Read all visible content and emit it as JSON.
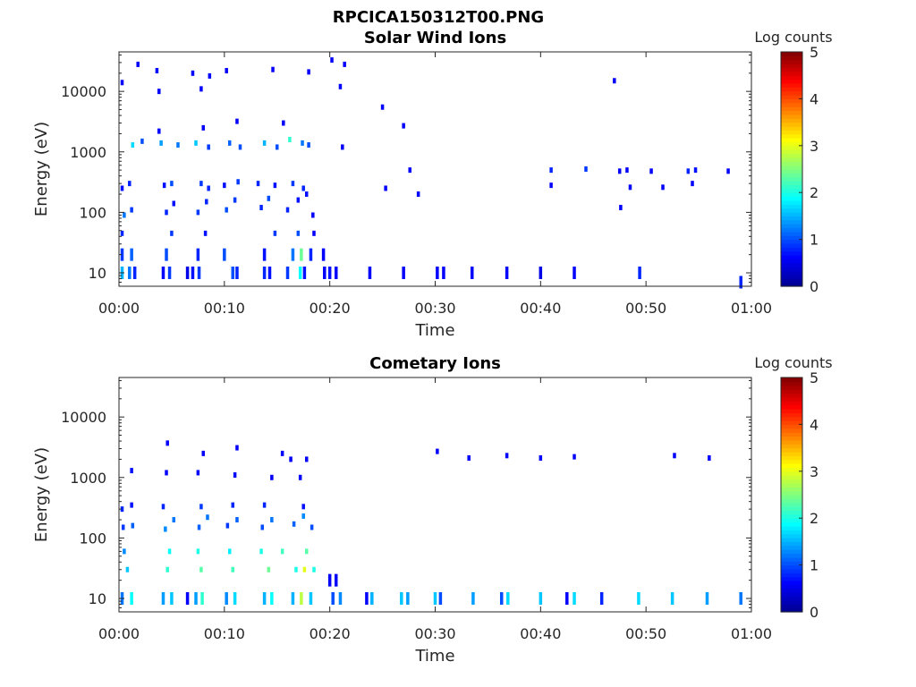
{
  "figure": {
    "title": "RPCICA150312T00.PNG"
  },
  "colorscale": [
    "#00008f",
    "#0000ff",
    "#0080ff",
    "#00ffff",
    "#80ff80",
    "#ffff00",
    "#ff8000",
    "#ff0000",
    "#800000"
  ],
  "chart_data": [
    {
      "type": "heatmap",
      "title": "Solar Wind Ions",
      "xlabel": "Time",
      "ylabel": "Energy (eV)",
      "x_ticks": [
        "00:00",
        "00:10",
        "00:20",
        "00:30",
        "00:40",
        "00:50",
        "01:00"
      ],
      "x_range_minutes": [
        0,
        60
      ],
      "y_scale": "log",
      "y_ticks": [
        "10",
        "100",
        "1000",
        "10000"
      ],
      "y_range": [
        6,
        45000
      ],
      "colorbar": {
        "label": "Log counts",
        "range": [
          0,
          5
        ],
        "ticks": [
          "0",
          "1",
          "2",
          "3",
          "4",
          "5"
        ]
      },
      "cells": [
        [
          0.3,
          10,
          1.5
        ],
        [
          1.0,
          10,
          1.2
        ],
        [
          1.5,
          10,
          0.8
        ],
        [
          4.2,
          10,
          0.6
        ],
        [
          4.8,
          10,
          0.9
        ],
        [
          6.5,
          10,
          0.5
        ],
        [
          7.0,
          10,
          0.7
        ],
        [
          7.6,
          10,
          0.9
        ],
        [
          10.8,
          10,
          1.0
        ],
        [
          11.2,
          10,
          0.8
        ],
        [
          13.8,
          10,
          0.8
        ],
        [
          14.3,
          10,
          0.7
        ],
        [
          16.0,
          10,
          0.9
        ],
        [
          17.2,
          10,
          1.9
        ],
        [
          17.6,
          10,
          0.7
        ],
        [
          19.5,
          10,
          0.6
        ],
        [
          20.0,
          10,
          0.7
        ],
        [
          20.6,
          10,
          0.6
        ],
        [
          23.8,
          10,
          0.6
        ],
        [
          27.0,
          10,
          0.6
        ],
        [
          30.2,
          10,
          0.6
        ],
        [
          30.8,
          10,
          0.6
        ],
        [
          33.5,
          10,
          0.6
        ],
        [
          36.8,
          10,
          0.6
        ],
        [
          40.0,
          10,
          0.5
        ],
        [
          43.2,
          10,
          0.6
        ],
        [
          49.4,
          10,
          0.8
        ],
        [
          59.0,
          7,
          0.8
        ],
        [
          0.3,
          20,
          0.9
        ],
        [
          1.2,
          20,
          1.1
        ],
        [
          4.5,
          20,
          1.0
        ],
        [
          7.5,
          20,
          0.8
        ],
        [
          10.0,
          20,
          1.0
        ],
        [
          13.8,
          20,
          0.7
        ],
        [
          16.5,
          20,
          1.2
        ],
        [
          17.3,
          20,
          2.4
        ],
        [
          18.2,
          20,
          0.8
        ],
        [
          19.4,
          20,
          0.6
        ],
        [
          0.3,
          45,
          0.8
        ],
        [
          5.0,
          45,
          0.9
        ],
        [
          8.2,
          45,
          0.7
        ],
        [
          14.8,
          45,
          0.9
        ],
        [
          17.0,
          45,
          1.0
        ],
        [
          18.5,
          45,
          0.6
        ],
        [
          0.5,
          90,
          1.2
        ],
        [
          1.2,
          110,
          0.9
        ],
        [
          4.5,
          100,
          0.8
        ],
        [
          5.2,
          140,
          0.7
        ],
        [
          7.5,
          100,
          0.9
        ],
        [
          8.3,
          150,
          0.8
        ],
        [
          10.2,
          110,
          1.0
        ],
        [
          11.0,
          160,
          0.9
        ],
        [
          13.5,
          120,
          0.8
        ],
        [
          14.2,
          170,
          1.0
        ],
        [
          16.0,
          110,
          0.8
        ],
        [
          17.0,
          160,
          0.7
        ],
        [
          17.8,
          200,
          0.7
        ],
        [
          18.4,
          90,
          0.6
        ],
        [
          0.3,
          250,
          0.7
        ],
        [
          1.0,
          300,
          0.8
        ],
        [
          4.3,
          280,
          0.7
        ],
        [
          5.0,
          300,
          1.0
        ],
        [
          7.8,
          300,
          0.9
        ],
        [
          8.5,
          250,
          0.8
        ],
        [
          10.0,
          280,
          0.7
        ],
        [
          11.3,
          320,
          0.9
        ],
        [
          13.2,
          300,
          0.8
        ],
        [
          14.8,
          280,
          0.7
        ],
        [
          16.5,
          300,
          0.9
        ],
        [
          17.5,
          250,
          0.8
        ],
        [
          1.3,
          1300,
          1.7
        ],
        [
          2.2,
          1500,
          1.0
        ],
        [
          4.0,
          1400,
          1.4
        ],
        [
          5.6,
          1300,
          1.2
        ],
        [
          7.3,
          1400,
          1.6
        ],
        [
          8.5,
          1200,
          0.9
        ],
        [
          10.5,
          1400,
          1.1
        ],
        [
          11.5,
          1200,
          1.0
        ],
        [
          13.8,
          1400,
          1.5
        ],
        [
          15.0,
          1200,
          1.0
        ],
        [
          16.2,
          1600,
          2.1
        ],
        [
          17.4,
          1400,
          1.2
        ],
        [
          18.0,
          1300,
          1.0
        ],
        [
          21.2,
          1200,
          0.6
        ],
        [
          3.8,
          2200,
          0.6
        ],
        [
          8.0,
          2500,
          0.6
        ],
        [
          11.2,
          3200,
          0.6
        ],
        [
          15.6,
          3000,
          0.6
        ],
        [
          27.0,
          2700,
          0.6
        ],
        [
          1.8,
          28000,
          0.6
        ],
        [
          3.6,
          22000,
          0.6
        ],
        [
          7.0,
          20000,
          0.6
        ],
        [
          8.6,
          18000,
          0.6
        ],
        [
          10.2,
          22000,
          0.6
        ],
        [
          14.6,
          23000,
          0.6
        ],
        [
          18.0,
          21000,
          0.6
        ],
        [
          20.2,
          33000,
          0.6
        ],
        [
          21.4,
          28000,
          0.6
        ],
        [
          0.3,
          14000,
          0.6
        ],
        [
          3.8,
          10000,
          0.6
        ],
        [
          7.8,
          11000,
          0.6
        ],
        [
          21.0,
          12000,
          0.6
        ],
        [
          25.0,
          5500,
          0.6
        ],
        [
          27.6,
          500,
          0.6
        ],
        [
          25.3,
          250,
          0.6
        ],
        [
          28.4,
          200,
          0.6
        ],
        [
          41.0,
          500,
          0.8
        ],
        [
          44.3,
          520,
          0.9
        ],
        [
          47.5,
          480,
          0.6
        ],
        [
          48.2,
          500,
          0.6
        ],
        [
          50.5,
          480,
          0.6
        ],
        [
          54.0,
          480,
          0.8
        ],
        [
          54.7,
          500,
          0.7
        ],
        [
          57.8,
          480,
          0.6
        ],
        [
          41.0,
          280,
          0.6
        ],
        [
          47.6,
          120,
          0.6
        ],
        [
          48.5,
          260,
          0.6
        ],
        [
          51.6,
          260,
          0.6
        ],
        [
          54.4,
          300,
          0.6
        ],
        [
          47.0,
          15000,
          0.6
        ]
      ]
    },
    {
      "type": "heatmap",
      "title": "Cometary Ions",
      "xlabel": "Time",
      "ylabel": "Energy (eV)",
      "x_ticks": [
        "00:00",
        "00:10",
        "00:20",
        "00:30",
        "00:40",
        "00:50",
        "01:00"
      ],
      "x_range_minutes": [
        0,
        60
      ],
      "y_scale": "log",
      "y_ticks": [
        "10",
        "100",
        "1000",
        "10000"
      ],
      "y_range": [
        6,
        45000
      ],
      "colorbar": {
        "label": "Log counts",
        "range": [
          0,
          5
        ],
        "ticks": [
          "0",
          "1",
          "2",
          "3",
          "4",
          "5"
        ]
      },
      "cells": [
        [
          0.3,
          10,
          1.2
        ],
        [
          1.2,
          10,
          1.9
        ],
        [
          4.2,
          10,
          1.4
        ],
        [
          5.0,
          10,
          1.6
        ],
        [
          6.5,
          10,
          0.6
        ],
        [
          7.3,
          10,
          1.4
        ],
        [
          7.9,
          10,
          2.1
        ],
        [
          10.2,
          10,
          1.3
        ],
        [
          11.0,
          10,
          1.7
        ],
        [
          13.8,
          10,
          1.5
        ],
        [
          14.5,
          10,
          1.9
        ],
        [
          16.5,
          10,
          1.5
        ],
        [
          17.3,
          10,
          2.8
        ],
        [
          18.2,
          10,
          1.6
        ],
        [
          20.0,
          20,
          0.6
        ],
        [
          20.6,
          20,
          0.6
        ],
        [
          20.3,
          10,
          1.0
        ],
        [
          21.0,
          10,
          1.3
        ],
        [
          23.5,
          10,
          0.6
        ],
        [
          24.0,
          10,
          1.5
        ],
        [
          26.8,
          10,
          1.6
        ],
        [
          27.4,
          10,
          1.4
        ],
        [
          30.0,
          10,
          1.6
        ],
        [
          30.5,
          10,
          1.0
        ],
        [
          33.6,
          10,
          1.4
        ],
        [
          36.3,
          10,
          1.0
        ],
        [
          36.9,
          10,
          1.7
        ],
        [
          40.0,
          10,
          1.6
        ],
        [
          42.5,
          10,
          0.6
        ],
        [
          43.2,
          10,
          1.7
        ],
        [
          45.8,
          10,
          0.8
        ],
        [
          49.3,
          10,
          1.7
        ],
        [
          52.5,
          10,
          1.6
        ],
        [
          55.8,
          10,
          1.4
        ],
        [
          59.0,
          10,
          1.2
        ],
        [
          0.8,
          30,
          1.6
        ],
        [
          4.6,
          30,
          2.1
        ],
        [
          7.8,
          30,
          2.3
        ],
        [
          10.8,
          30,
          2.2
        ],
        [
          14.2,
          30,
          2.4
        ],
        [
          16.8,
          30,
          2.0
        ],
        [
          17.6,
          30,
          3.0
        ],
        [
          18.5,
          30,
          2.0
        ],
        [
          0.5,
          60,
          1.3
        ],
        [
          4.8,
          60,
          1.9
        ],
        [
          7.5,
          60,
          2.0
        ],
        [
          10.5,
          60,
          1.8
        ],
        [
          13.5,
          60,
          2.0
        ],
        [
          15.5,
          60,
          2.2
        ],
        [
          17.8,
          60,
          2.3
        ],
        [
          0.4,
          150,
          0.9
        ],
        [
          1.3,
          160,
          1.1
        ],
        [
          4.4,
          140,
          1.3
        ],
        [
          5.2,
          200,
          1.2
        ],
        [
          7.6,
          150,
          1.1
        ],
        [
          8.4,
          220,
          1.2
        ],
        [
          10.3,
          160,
          0.9
        ],
        [
          11.2,
          200,
          1.1
        ],
        [
          13.6,
          150,
          1.0
        ],
        [
          14.5,
          200,
          1.2
        ],
        [
          16.6,
          170,
          1.1
        ],
        [
          17.5,
          230,
          1.3
        ],
        [
          18.3,
          150,
          1.0
        ],
        [
          0.3,
          300,
          0.8
        ],
        [
          1.2,
          350,
          0.7
        ],
        [
          4.2,
          330,
          0.8
        ],
        [
          7.8,
          330,
          0.9
        ],
        [
          10.8,
          350,
          0.8
        ],
        [
          13.8,
          350,
          0.8
        ],
        [
          17.5,
          330,
          0.7
        ],
        [
          1.2,
          1300,
          0.7
        ],
        [
          4.5,
          1200,
          0.6
        ],
        [
          7.5,
          1200,
          0.6
        ],
        [
          11.0,
          1100,
          0.6
        ],
        [
          14.5,
          1000,
          0.6
        ],
        [
          17.2,
          1000,
          0.6
        ],
        [
          4.6,
          3700,
          0.6
        ],
        [
          11.2,
          3100,
          0.6
        ],
        [
          8.0,
          2500,
          0.6
        ],
        [
          15.5,
          2500,
          0.6
        ],
        [
          16.3,
          2000,
          0.6
        ],
        [
          17.8,
          2000,
          0.6
        ],
        [
          30.2,
          2700,
          0.6
        ],
        [
          33.2,
          2100,
          0.6
        ],
        [
          36.8,
          2300,
          0.6
        ],
        [
          40.0,
          2100,
          0.6
        ],
        [
          43.2,
          2200,
          0.6
        ],
        [
          52.7,
          2300,
          0.6
        ],
        [
          56.0,
          2100,
          0.6
        ]
      ]
    }
  ]
}
